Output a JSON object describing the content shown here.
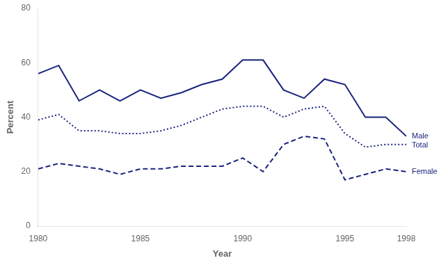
{
  "chart_data": {
    "type": "line",
    "x": [
      1980,
      1981,
      1982,
      1983,
      1984,
      1985,
      1986,
      1987,
      1988,
      1989,
      1990,
      1991,
      1992,
      1993,
      1994,
      1995,
      1996,
      1997,
      1998
    ],
    "series": [
      {
        "name": "Male",
        "color": "#1a237e",
        "line_style": "solid",
        "values": [
          56,
          59,
          46,
          50,
          46,
          50,
          47,
          49,
          52,
          54,
          61,
          61,
          50,
          47,
          54,
          52,
          40,
          40,
          33
        ]
      },
      {
        "name": "Total",
        "color": "#1a237e",
        "line_style": "dotted",
        "values": [
          39,
          41,
          35,
          35,
          34,
          34,
          35,
          37,
          40,
          43,
          44,
          44,
          40,
          43,
          44,
          34,
          29,
          30,
          30
        ]
      },
      {
        "name": "Female",
        "color": "#1a237e",
        "line_style": "dashed",
        "values": [
          21,
          23,
          22,
          21,
          19,
          21,
          21,
          22,
          22,
          22,
          25,
          20,
          30,
          33,
          32,
          17,
          19,
          21,
          20
        ]
      }
    ],
    "x_label": "Year",
    "y_label": "Percent",
    "xlim": [
      1980,
      1998
    ],
    "ylim": [
      0,
      80
    ],
    "xticks": [
      1980,
      1985,
      1990,
      1995,
      1998
    ],
    "yticks": [
      0,
      20,
      40,
      60,
      80
    ],
    "grid": false,
    "annotations": [
      {
        "text": "Male",
        "x": 1998,
        "y": 33,
        "color": "#1a237e"
      },
      {
        "text": "Total",
        "x": 1998,
        "y": 30,
        "color": "#1a237e"
      },
      {
        "text": "Female",
        "x": 1998,
        "y": 20,
        "color": "#1a237e"
      }
    ]
  }
}
